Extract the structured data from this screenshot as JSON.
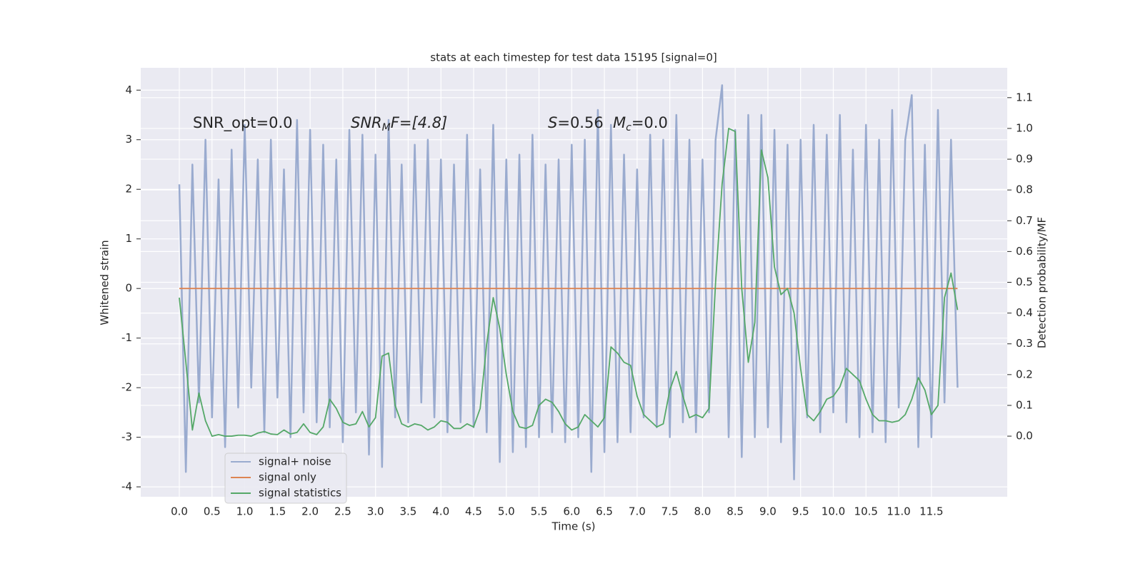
{
  "chart_data": {
    "type": "line",
    "title": "stats at each timestep for test data 15195 [signal=0]",
    "xlabel": "Time (s)",
    "ylabel": "Whitened strain",
    "y2label": "Detection probability/MF",
    "annotations": [
      [
        "SNR_opt=0.0"
      ],
      [
        "SNR",
        "M",
        "F=[4.8]"
      ],
      [
        "S",
        "=0.56",
        "M",
        "c",
        "=0.0"
      ]
    ],
    "x": [
      0.0,
      0.1,
      0.2,
      0.3,
      0.4,
      0.5,
      0.6,
      0.7,
      0.8,
      0.9,
      1.0,
      1.1,
      1.2,
      1.3,
      1.4,
      1.5,
      1.6,
      1.7,
      1.8,
      1.9,
      2.0,
      2.1,
      2.2,
      2.3,
      2.4,
      2.5,
      2.6,
      2.7,
      2.8,
      2.9,
      3.0,
      3.1,
      3.2,
      3.3,
      3.4,
      3.5,
      3.6,
      3.7,
      3.8,
      3.9,
      4.0,
      4.1,
      4.2,
      4.3,
      4.4,
      4.5,
      4.6,
      4.7,
      4.8,
      4.9,
      5.0,
      5.1,
      5.2,
      5.3,
      5.4,
      5.5,
      5.6,
      5.7,
      5.8,
      5.9,
      6.0,
      6.1,
      6.2,
      6.3,
      6.4,
      6.5,
      6.6,
      6.7,
      6.8,
      6.9,
      7.0,
      7.1,
      7.2,
      7.3,
      7.4,
      7.5,
      7.6,
      7.7,
      7.8,
      7.9,
      8.0,
      8.1,
      8.2,
      8.3,
      8.4,
      8.5,
      8.6,
      8.7,
      8.8,
      8.9,
      9.0,
      9.1,
      9.2,
      9.3,
      9.4,
      9.5,
      9.6,
      9.7,
      9.8,
      9.9,
      10.0,
      10.1,
      10.2,
      10.3,
      10.4,
      10.5,
      10.6,
      10.7,
      10.8,
      10.9,
      11.0,
      11.1,
      11.2,
      11.3,
      11.4,
      11.5,
      11.6,
      11.7,
      11.8,
      11.9
    ],
    "series": [
      {
        "name": "signal+ noise",
        "color": "#9aabcf",
        "axis": "y",
        "values": [
          2.1,
          -3.7,
          2.5,
          -2.3,
          3.0,
          -2.6,
          2.2,
          -3.2,
          2.8,
          -2.4,
          3.3,
          -2.0,
          2.6,
          -2.9,
          3.0,
          -2.2,
          2.4,
          -3.0,
          3.4,
          -2.5,
          3.2,
          -2.7,
          2.9,
          -2.8,
          2.6,
          -3.1,
          3.2,
          -2.5,
          3.1,
          -3.35,
          2.7,
          -3.6,
          3.4,
          -2.6,
          2.5,
          -2.7,
          2.9,
          -2.3,
          3.0,
          -2.6,
          2.6,
          -2.9,
          2.5,
          -2.7,
          3.1,
          -2.8,
          2.4,
          -2.9,
          3.3,
          -3.5,
          2.6,
          -3.3,
          2.7,
          -3.2,
          3.1,
          -3.0,
          2.5,
          -2.9,
          2.6,
          -3.1,
          2.9,
          -3.0,
          3.0,
          -3.7,
          3.6,
          -3.3,
          3.3,
          -3.1,
          2.7,
          -2.9,
          2.4,
          -2.6,
          3.1,
          -2.8,
          3.0,
          -3.0,
          3.5,
          -2.7,
          3.0,
          -2.9,
          2.6,
          -2.5,
          3.0,
          4.1,
          -3.0,
          3.2,
          -3.4,
          3.5,
          -3.0,
          3.5,
          -2.8,
          3.2,
          -3.1,
          2.9,
          -3.85,
          3.0,
          -2.6,
          3.3,
          -2.9,
          3.1,
          -2.5,
          3.5,
          -2.7,
          2.8,
          -3.0,
          3.3,
          -2.9,
          3.0,
          -3.1,
          3.6,
          -2.4,
          3.0,
          3.9,
          -3.2,
          2.9,
          -3.0,
          3.6,
          -2.3,
          3.0,
          -2.0
        ]
      },
      {
        "name": "signal only",
        "color": "#dd8452",
        "axis": "y",
        "values": [
          0,
          0,
          0,
          0,
          0,
          0,
          0,
          0,
          0,
          0,
          0,
          0,
          0,
          0,
          0,
          0,
          0,
          0,
          0,
          0,
          0,
          0,
          0,
          0,
          0,
          0,
          0,
          0,
          0,
          0,
          0,
          0,
          0,
          0,
          0,
          0,
          0,
          0,
          0,
          0,
          0,
          0,
          0,
          0,
          0,
          0,
          0,
          0,
          0,
          0,
          0,
          0,
          0,
          0,
          0,
          0,
          0,
          0,
          0,
          0,
          0,
          0,
          0,
          0,
          0,
          0,
          0,
          0,
          0,
          0,
          0,
          0,
          0,
          0,
          0,
          0,
          0,
          0,
          0,
          0,
          0,
          0,
          0,
          0,
          0,
          0,
          0,
          0,
          0,
          0,
          0,
          0,
          0,
          0,
          0,
          0,
          0,
          0,
          0,
          0,
          0,
          0,
          0,
          0,
          0,
          0,
          0,
          0,
          0,
          0,
          0,
          0,
          0,
          0,
          0,
          0,
          0,
          0,
          0,
          0
        ]
      },
      {
        "name": "signal statistics",
        "color": "#55a868",
        "axis": "y2",
        "values": [
          0.45,
          0.24,
          0.02,
          0.14,
          0.05,
          0.0,
          0.005,
          0.0,
          0.0,
          0.003,
          0.003,
          0.0,
          0.01,
          0.015,
          0.007,
          0.005,
          0.02,
          0.007,
          0.012,
          0.04,
          0.012,
          0.005,
          0.03,
          0.12,
          0.09,
          0.045,
          0.035,
          0.04,
          0.08,
          0.03,
          0.06,
          0.26,
          0.27,
          0.1,
          0.04,
          0.03,
          0.04,
          0.035,
          0.02,
          0.03,
          0.05,
          0.045,
          0.025,
          0.025,
          0.04,
          0.03,
          0.09,
          0.3,
          0.45,
          0.35,
          0.2,
          0.08,
          0.03,
          0.025,
          0.035,
          0.1,
          0.12,
          0.11,
          0.08,
          0.04,
          0.02,
          0.03,
          0.07,
          0.05,
          0.03,
          0.06,
          0.29,
          0.27,
          0.24,
          0.23,
          0.13,
          0.07,
          0.05,
          0.03,
          0.04,
          0.15,
          0.21,
          0.13,
          0.06,
          0.07,
          0.06,
          0.09,
          0.5,
          0.82,
          1.0,
          0.99,
          0.48,
          0.24,
          0.37,
          0.93,
          0.84,
          0.55,
          0.46,
          0.48,
          0.4,
          0.22,
          0.07,
          0.05,
          0.08,
          0.12,
          0.13,
          0.16,
          0.22,
          0.2,
          0.18,
          0.12,
          0.07,
          0.05,
          0.05,
          0.045,
          0.05,
          0.07,
          0.12,
          0.19,
          0.15,
          0.07,
          0.1,
          0.45,
          0.53,
          0.41
        ]
      }
    ],
    "xlim": [
      -0.59,
      12.66
    ],
    "xticks": [
      {
        "value": 0,
        "label": "0.0"
      },
      0.5,
      {
        "value": 1,
        "label": "1.0"
      },
      1.5,
      {
        "value": 2,
        "label": "2.0"
      },
      2.5,
      {
        "value": 3,
        "label": "3.0"
      },
      3.5,
      {
        "value": 4,
        "label": "4.0"
      },
      4.5,
      {
        "value": 5,
        "label": "5.0"
      },
      5.5,
      {
        "value": 6,
        "label": "6.0"
      },
      6.5,
      {
        "value": 7,
        "label": "7.0"
      },
      7.5,
      {
        "value": 8,
        "label": "8.0"
      },
      8.5,
      {
        "value": 9,
        "label": "9.0"
      },
      9.5,
      {
        "value": 10,
        "label": "10.0"
      },
      10.5,
      {
        "value": 11,
        "label": "11.0"
      },
      11.5
    ],
    "ylim": [
      -4.2,
      4.45
    ],
    "yticks": [
      -4,
      -3,
      -2,
      -1,
      0,
      1,
      2,
      3,
      4
    ],
    "y2lim": [
      -0.197,
      1.197
    ],
    "y2ticks": [
      {
        "value": 0,
        "label": "0.0"
      },
      0.1,
      0.2,
      0.3,
      0.4,
      0.5,
      0.6,
      0.7,
      0.8,
      0.9,
      {
        "value": 1,
        "label": "1.0"
      },
      1.1
    ],
    "grid": true,
    "legend": "lower left"
  }
}
